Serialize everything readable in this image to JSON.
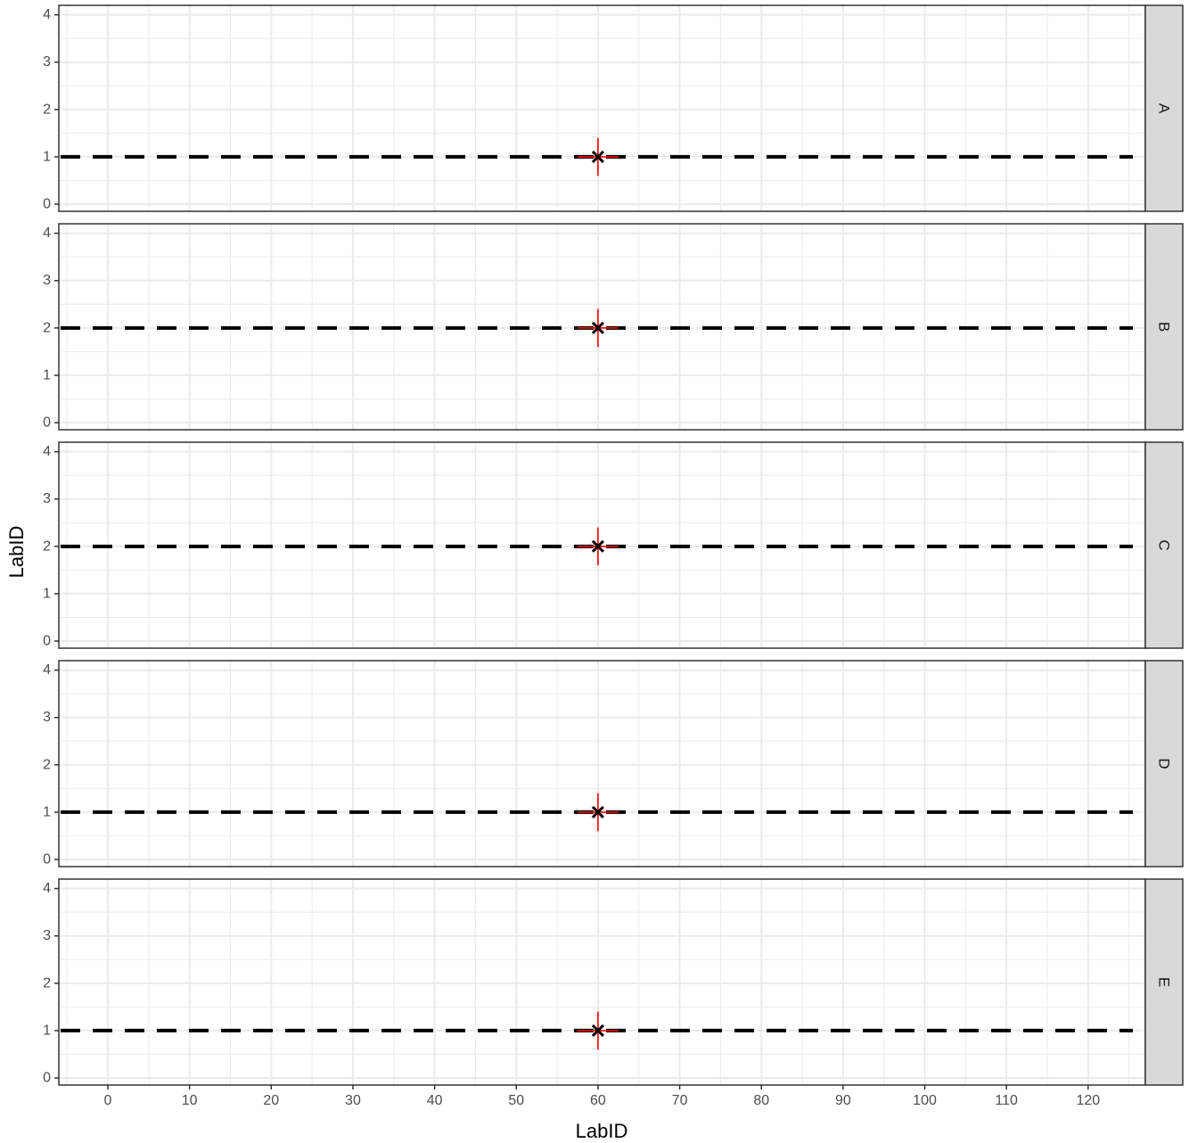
{
  "chart_data": {
    "type": "scatter",
    "xlabel": "LabID",
    "ylabel": "LabID",
    "xlim": [
      -6,
      127
    ],
    "ylim": [
      -0.15,
      4.2
    ],
    "x_ticks": [
      0,
      10,
      20,
      30,
      40,
      50,
      60,
      70,
      80,
      90,
      100,
      110,
      120
    ],
    "y_ticks": [
      0,
      1,
      2,
      3,
      4
    ],
    "grid": true,
    "facets": [
      {
        "label": "A",
        "reference_line_y": 1,
        "point": {
          "x": 60,
          "y": 1
        },
        "x_error": [
          57.5,
          62.5
        ],
        "y_error": [
          0.6,
          1.4
        ]
      },
      {
        "label": "B",
        "reference_line_y": 2,
        "point": {
          "x": 60,
          "y": 2
        },
        "x_error": [
          57.5,
          62.5
        ],
        "y_error": [
          1.6,
          2.4
        ]
      },
      {
        "label": "C",
        "reference_line_y": 2,
        "point": {
          "x": 60,
          "y": 2
        },
        "x_error": [
          57.5,
          62.5
        ],
        "y_error": [
          1.6,
          2.4
        ]
      },
      {
        "label": "D",
        "reference_line_y": 1,
        "point": {
          "x": 60,
          "y": 1
        },
        "x_error": [
          57.5,
          62.5
        ],
        "y_error": [
          0.6,
          1.4
        ]
      },
      {
        "label": "E",
        "reference_line_y": 1,
        "point": {
          "x": 60,
          "y": 1
        },
        "x_error": [
          57.5,
          62.5
        ],
        "y_error": [
          0.6,
          1.4
        ]
      }
    ],
    "colors": {
      "reference_line": "#000000",
      "error_bar": "#ff0000",
      "point": "#000000",
      "grid": "#ebebeb",
      "strip_fill": "#d9d9d9",
      "panel_border": "#333333"
    }
  }
}
